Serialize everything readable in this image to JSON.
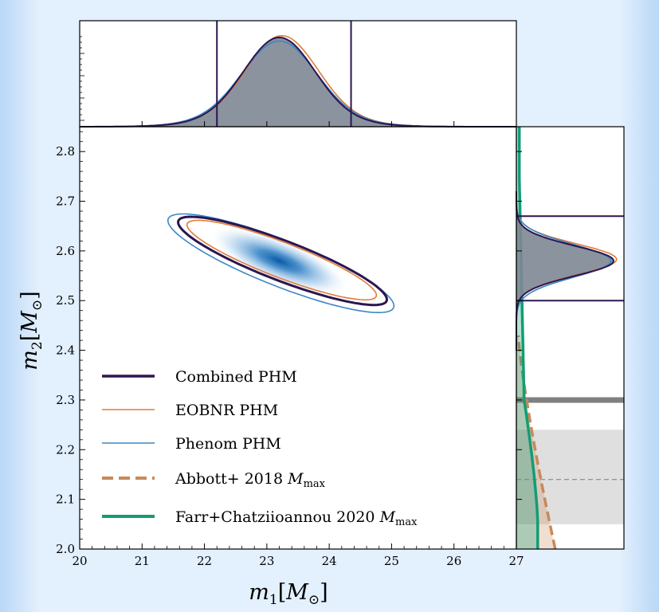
{
  "chart_data": {
    "type": "corner",
    "title": "",
    "xlabel": "m_1[M_⊙]",
    "ylabel": "m_2[M_⊙]",
    "xlim": [
      20,
      27
    ],
    "ylim": [
      2.0,
      2.85
    ],
    "x_ticks": [
      "20",
      "21",
      "22",
      "23",
      "24",
      "25",
      "26",
      "27"
    ],
    "y_ticks": [
      "2.0",
      "2.1",
      "2.2",
      "2.3",
      "2.4",
      "2.5",
      "2.6",
      "2.7",
      "2.8"
    ],
    "grid": false,
    "legend_position": "lower-left",
    "series": [
      {
        "name": "Combined PHM",
        "color": "#2b1650",
        "m1_peak": 23.2,
        "m1_90pct_interval": [
          22.2,
          24.35
        ],
        "m2_peak": 2.58,
        "m2_90pct_interval": [
          2.5,
          2.67
        ]
      },
      {
        "name": "EOBNR PHM",
        "color": "#e07b39",
        "m1_peak": 23.2,
        "m2_peak": 2.58
      },
      {
        "name": "Phenom PHM",
        "color": "#3c86c6",
        "m1_peak": 23.2,
        "m2_peak": 2.58
      }
    ],
    "legend_entries": {
      "abbott": "Abbott+ 2018 ",
      "farr": "Farr+Chatziioannou 2020 ",
      "mmax_sym": "M",
      "mmax_sub": "max"
    },
    "reference_bands": [
      {
        "label": "Abbott+ 2018 M_max",
        "color": "#c8895a",
        "style": "dashed"
      },
      {
        "label": "Farr+Chatziioannou 2020 M_max",
        "color": "#129d74",
        "style": "solid"
      },
      {
        "label": "",
        "value": 2.3,
        "color": "#808080",
        "style": "thick-line"
      },
      {
        "label": "",
        "median": 2.14,
        "range": [
          2.05,
          2.24
        ],
        "color": "#d9d9d9",
        "style": "band"
      }
    ],
    "axis_label_parts": {
      "x_var": "m",
      "x_sub": "1",
      "y_var": "m",
      "y_sub": "2",
      "unit_var": "M",
      "unit_sub": "⊙"
    }
  }
}
